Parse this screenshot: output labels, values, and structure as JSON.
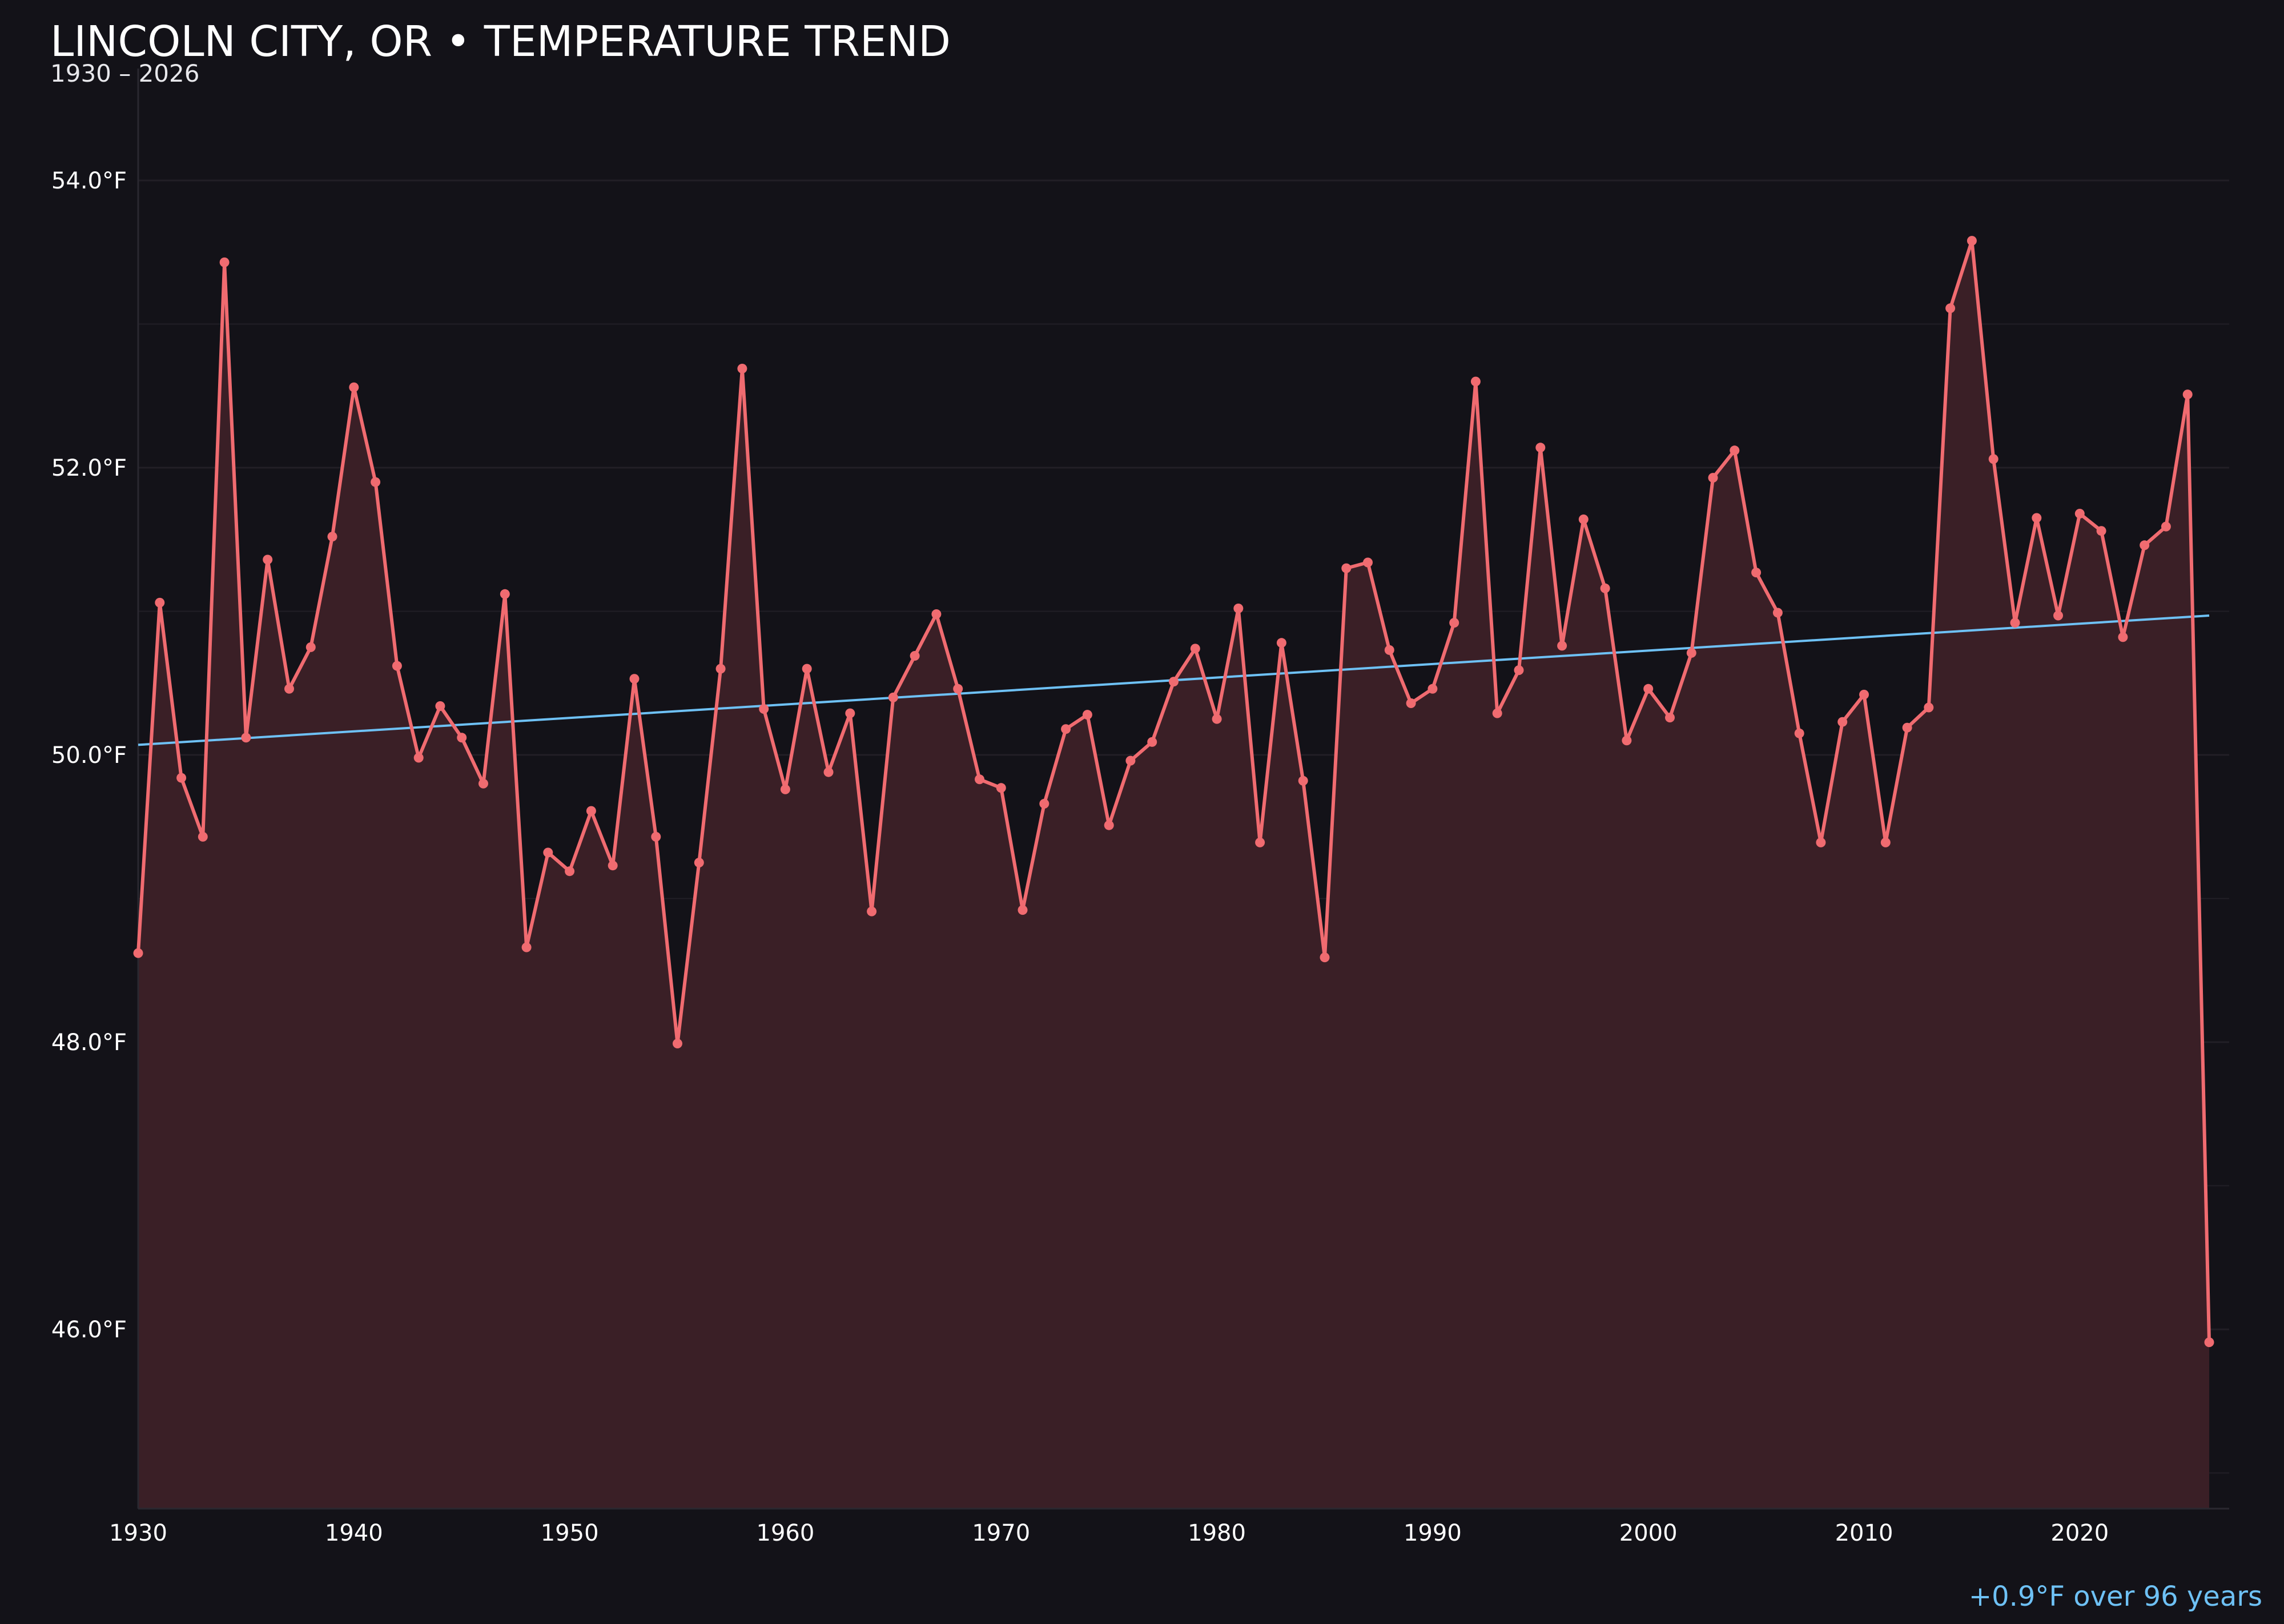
{
  "chart_data": {
    "type": "line",
    "title": "LINCOLN CITY, OR • TEMPERATURE TREND",
    "subtitle": "1930 – 2026",
    "annotation": "+0.9°F over 96 years",
    "x_ticks": [
      1930,
      1940,
      1950,
      1960,
      1970,
      1980,
      1990,
      2000,
      2010,
      2020
    ],
    "y_ticks": [
      {
        "value": 46,
        "label": "46.0°F"
      },
      {
        "value": 48,
        "label": "48.0°F"
      },
      {
        "value": 50,
        "label": "50.0°F"
      },
      {
        "value": 52,
        "label": "52.0°F"
      },
      {
        "value": 54,
        "label": "54.0°F"
      }
    ],
    "xlim": [
      1930,
      2027
    ],
    "ylim": [
      44.8,
      55.3
    ],
    "grid": "horizontal",
    "colors": {
      "background": "#131218",
      "series": "#f06b70",
      "fill": "#3a1f26",
      "trend": "#6ec1f5",
      "grid": "#221f26"
    },
    "series": [
      {
        "x": [
          1930,
          1931,
          1932,
          1933,
          1934,
          1935,
          1936,
          1937,
          1938,
          1939,
          1940,
          1941,
          1942,
          1943,
          1944,
          1945,
          1946,
          1947,
          1948,
          1949,
          1950,
          1951,
          1952,
          1953,
          1954,
          1955,
          1956,
          1957,
          1958,
          1959,
          1960,
          1961,
          1962,
          1963,
          1964,
          1965,
          1966,
          1967,
          1968,
          1969,
          1970,
          1971,
          1972,
          1973,
          1974,
          1975,
          1976,
          1977,
          1978,
          1979,
          1980,
          1981,
          1982,
          1983,
          1984,
          1985,
          1986,
          1987,
          1988,
          1989,
          1990,
          1991,
          1992,
          1993,
          1994,
          1995,
          1996,
          1997,
          1998,
          1999,
          2000,
          2001,
          2002,
          2003,
          2004,
          2005,
          2006,
          2007,
          2008,
          2009,
          2010,
          2011,
          2012,
          2013,
          2014,
          2015,
          2016,
          2017,
          2018,
          2019,
          2020,
          2021,
          2022,
          2023,
          2024,
          2025,
          2026
        ],
        "y": [
          48.62,
          51.06,
          49.84,
          49.43,
          53.43,
          50.12,
          51.36,
          50.46,
          50.75,
          51.52,
          52.56,
          51.9,
          50.62,
          49.98,
          50.34,
          50.12,
          49.8,
          51.12,
          48.66,
          49.32,
          49.19,
          49.61,
          49.23,
          50.53,
          49.43,
          47.99,
          49.25,
          50.6,
          52.69,
          50.32,
          49.76,
          50.6,
          49.88,
          50.29,
          48.91,
          50.4,
          50.69,
          50.98,
          50.46,
          49.83,
          49.77,
          48.92,
          49.66,
          50.18,
          50.28,
          49.51,
          49.96,
          50.09,
          50.51,
          50.74,
          50.25,
          51.02,
          49.39,
          50.78,
          49.82,
          48.59,
          51.3,
          51.34,
          50.73,
          50.36,
          50.46,
          50.92,
          52.6,
          50.29,
          50.59,
          52.14,
          50.76,
          51.64,
          51.16,
          50.1,
          50.46,
          50.26,
          50.71,
          51.93,
          52.12,
          51.27,
          50.99,
          50.15,
          49.39,
          50.23,
          50.42,
          49.39,
          50.19,
          50.33,
          53.11,
          53.58,
          52.06,
          50.92,
          51.65,
          50.97,
          51.68,
          51.56,
          50.82,
          51.46,
          51.59,
          52.51,
          45.91
        ]
      }
    ],
    "trend": {
      "x": [
        1930,
        2026
      ],
      "y": [
        50.07,
        50.97
      ]
    }
  }
}
